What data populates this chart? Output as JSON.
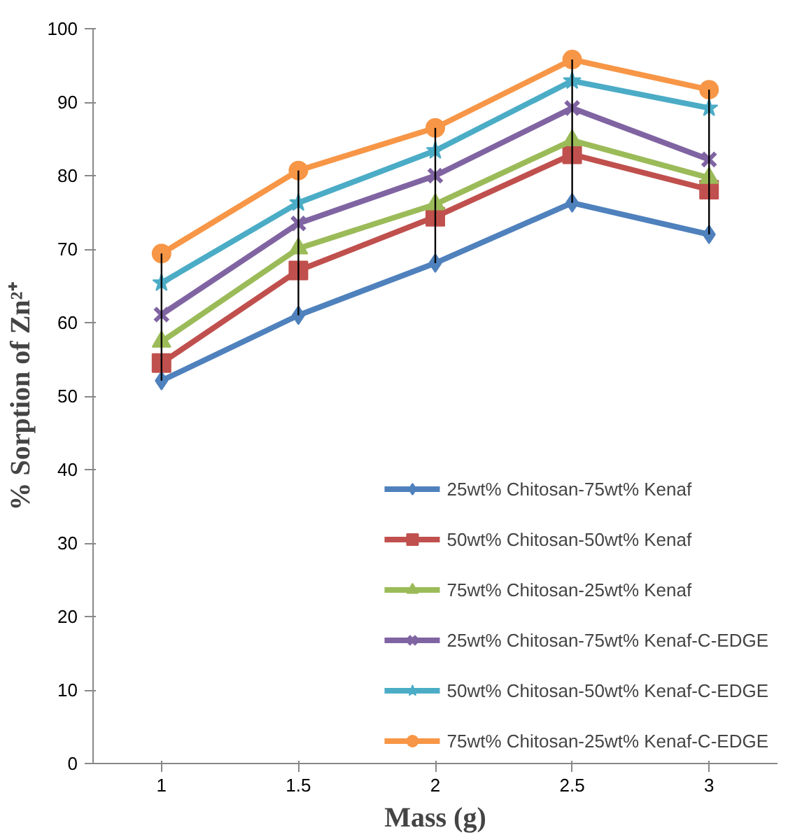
{
  "chart_data": {
    "type": "line",
    "xlabel": "Mass (g)",
    "ylabel": "% Sorption of Zn²⁺",
    "categories": [
      "1",
      "1.5",
      "2",
      "2.5",
      "3"
    ],
    "ylim": [
      0,
      100
    ],
    "yticks": [
      0,
      10,
      20,
      30,
      40,
      50,
      60,
      70,
      80,
      90,
      100
    ],
    "grid": false,
    "legend": "bottom right",
    "line_style": "solid",
    "series": [
      {
        "name": "25wt% Chitosan-75wt% Kenaf",
        "color": "#4f81bd",
        "marker": "diamond",
        "values": [
          52.1,
          61.0,
          68.1,
          76.3,
          72.0
        ],
        "errors": [
          [
            52.1,
            69.4
          ],
          [
            61.0,
            80.7
          ],
          [
            68.1,
            86.5
          ],
          [
            76.3,
            95.8
          ],
          [
            72.0,
            91.7
          ]
        ]
      },
      {
        "name": "50wt% Chitosan-50wt% Kenaf",
        "color": "#c0504d",
        "marker": "square",
        "values": [
          54.5,
          67.1,
          74.4,
          82.9,
          78.1
        ]
      },
      {
        "name": "75wt% Chitosan-25wt% Kenaf",
        "color": "#9bbb59",
        "marker": "triangle",
        "values": [
          57.4,
          70.1,
          76.1,
          84.8,
          79.7
        ]
      },
      {
        "name": "25wt% Chitosan-75wt% Kenaf-C-EDGE",
        "color": "#8064a2",
        "marker": "cross",
        "values": [
          61.1,
          73.5,
          80.0,
          89.2,
          82.2
        ]
      },
      {
        "name": "50wt% Chitosan-50wt% Kenaf-C-EDGE",
        "color": "#4bacc6",
        "marker": "star",
        "values": [
          65.4,
          76.3,
          83.4,
          92.9,
          89.2
        ]
      },
      {
        "name": "75wt% Chitosan-25wt% Kenaf-C-EDGE",
        "color": "#f79646",
        "marker": "circle",
        "values": [
          69.4,
          80.7,
          86.5,
          95.8,
          91.7
        ]
      }
    ]
  }
}
